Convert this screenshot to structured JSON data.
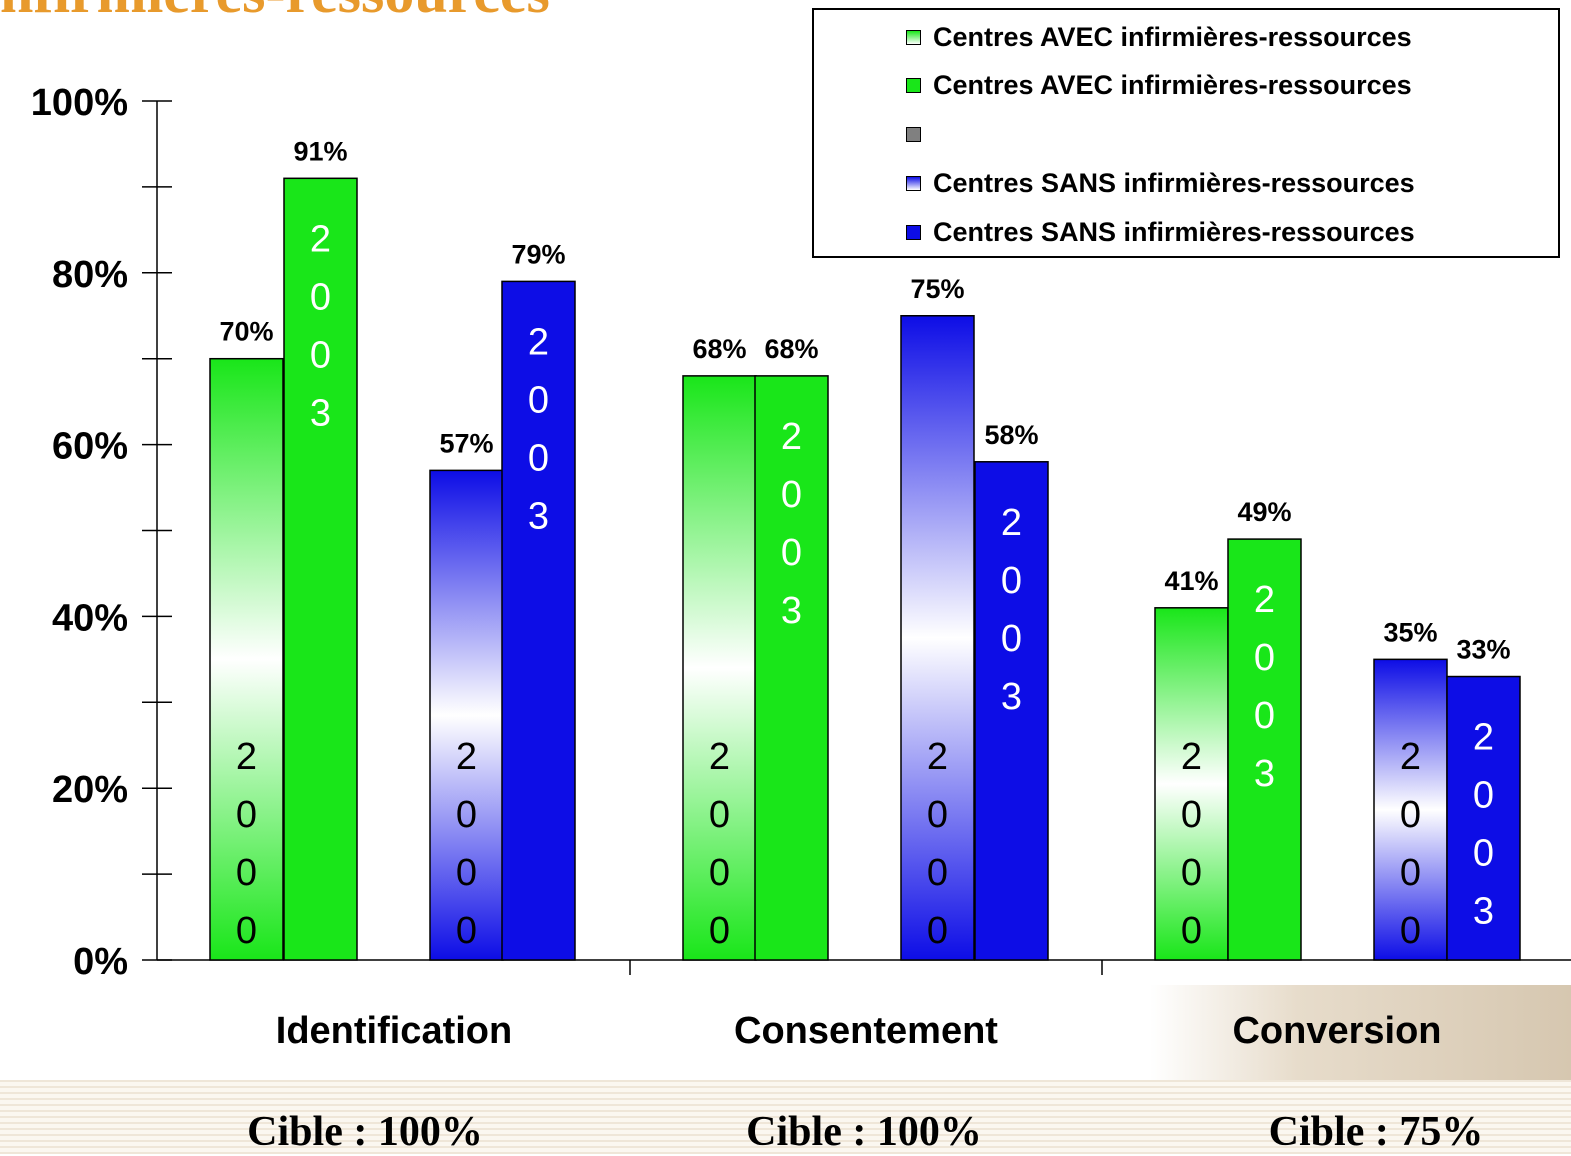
{
  "slide_title": "nfirmières-ressources",
  "legend": [
    {
      "label": "Centres AVEC infirmières-ressources",
      "swatch": "avec-2000"
    },
    {
      "label": "Centres AVEC infirmières-ressources",
      "swatch": "avec-2003"
    },
    {
      "label": "",
      "swatch": "gray"
    },
    {
      "label": "Centres SANS infirmières-ressources",
      "swatch": "sans-2000"
    },
    {
      "label": "Centres SANS infirmières-ressources",
      "swatch": "sans-2003"
    }
  ],
  "colors": {
    "green": "#19e619",
    "blue": "#0d0de6",
    "gray": "#808080",
    "title": "#e89a2c"
  },
  "targets": [
    "Cible : 100%",
    "Cible : 100%",
    "Cible : 75%"
  ],
  "chart_data": {
    "type": "bar",
    "title": "",
    "xlabel": "",
    "ylabel": "",
    "ylim": [
      0,
      100
    ],
    "y_ticks": [
      "0%",
      "20%",
      "40%",
      "60%",
      "80%",
      "100%"
    ],
    "categories": [
      "Identification",
      "Consentement",
      "Conversion"
    ],
    "legend_position": "top-right",
    "grid": false,
    "bars": [
      {
        "category": "Identification",
        "group": "AVEC",
        "year": "2000",
        "value": 70,
        "label": "70%"
      },
      {
        "category": "Identification",
        "group": "AVEC",
        "year": "2003",
        "value": 91,
        "label": "91%"
      },
      {
        "category": "Identification",
        "group": "SANS",
        "year": "2000",
        "value": 57,
        "label": "57%"
      },
      {
        "category": "Identification",
        "group": "SANS",
        "year": "2003",
        "value": 79,
        "label": "79%"
      },
      {
        "category": "Consentement",
        "group": "AVEC",
        "year": "2000",
        "value": 68,
        "label": "68%"
      },
      {
        "category": "Consentement",
        "group": "AVEC",
        "year": "2003",
        "value": 68,
        "label": "68%"
      },
      {
        "category": "Consentement",
        "group": "SANS",
        "year": "2000",
        "value": 75,
        "label": "75%"
      },
      {
        "category": "Consentement",
        "group": "SANS",
        "year": "2003",
        "value": 58,
        "label": "58%"
      },
      {
        "category": "Conversion",
        "group": "AVEC",
        "year": "2000",
        "value": 41,
        "label": "41%"
      },
      {
        "category": "Conversion",
        "group": "AVEC",
        "year": "2003",
        "value": 49,
        "label": "49%"
      },
      {
        "category": "Conversion",
        "group": "SANS",
        "year": "2000",
        "value": 35,
        "label": "35%"
      },
      {
        "category": "Conversion",
        "group": "SANS",
        "year": "2003",
        "value": 33,
        "label": "33%"
      }
    ]
  }
}
